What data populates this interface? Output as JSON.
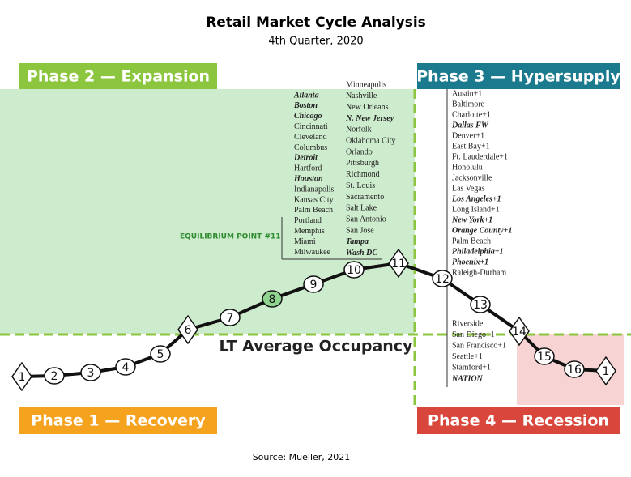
{
  "header": {
    "title": "Retail Market Cycle Analysis",
    "subtitle": "4th Quarter, 2020"
  },
  "phases": [
    {
      "label": "Phase 1 — Recovery",
      "color": "#f5a21f"
    },
    {
      "label": "Phase 2 — Expansion",
      "color": "#8cc63f"
    },
    {
      "label": "Phase 3 — Hypersupply",
      "color": "#1b7a8e"
    },
    {
      "label": "Phase 4 — Recession",
      "color": "#d9463b"
    }
  ],
  "annotations": {
    "equilibrium": "EQUILIBRIUM POINT #11",
    "occupancy": "LT Average Occupancy",
    "source": "Source: Mueller, 2021"
  },
  "city_columns": [
    [
      {
        "label": "Atlanta",
        "emphasis": true
      },
      {
        "label": "Boston",
        "emphasis": true
      },
      {
        "label": "Chicago",
        "emphasis": true
      },
      {
        "label": "Cincinnati"
      },
      {
        "label": "Cleveland"
      },
      {
        "label": "Columbus"
      },
      {
        "label": "Detroit",
        "emphasis": true
      },
      {
        "label": "Hartford"
      },
      {
        "label": "Houston",
        "emphasis": true
      },
      {
        "label": "Indianapolis"
      },
      {
        "label": "Kansas City"
      },
      {
        "label": "Palm Beach"
      },
      {
        "label": "Portland"
      },
      {
        "label": "Memphis"
      },
      {
        "label": "Miami"
      },
      {
        "label": "Milwaukee"
      }
    ],
    [
      {
        "label": "Minneapolis"
      },
      {
        "label": "Nashville"
      },
      {
        "label": "New Orleans"
      },
      {
        "label": "N. New Jersey",
        "emphasis": true
      },
      {
        "label": "Norfolk"
      },
      {
        "label": "Oklahoma City"
      },
      {
        "label": "Orlando"
      },
      {
        "label": "Pittsburgh"
      },
      {
        "label": "Richmond"
      },
      {
        "label": "St. Louis"
      },
      {
        "label": "Sacramento"
      },
      {
        "label": "Salt Lake"
      },
      {
        "label": "San Antonio"
      },
      {
        "label": "San Jose"
      },
      {
        "label": "Tampa",
        "emphasis": true
      },
      {
        "label": "Wash DC",
        "emphasis": true
      }
    ],
    [
      {
        "label": "Austin+1"
      },
      {
        "label": "Baltimore"
      },
      {
        "label": "Charlotte+1"
      },
      {
        "label": "Dallas FW",
        "emphasis": true
      },
      {
        "label": "Denver+1"
      },
      {
        "label": "East Bay+1"
      },
      {
        "label": "Ft. Lauderdale+1"
      },
      {
        "label": "Honolulu"
      },
      {
        "label": "Jacksonville"
      },
      {
        "label": "Las Vegas"
      },
      {
        "label": "Los Angeles+1",
        "emphasis": true
      },
      {
        "label": "Long Island+1"
      },
      {
        "label": "New York+1",
        "emphasis": true
      },
      {
        "label": "Orange County+1",
        "emphasis": true
      },
      {
        "label": "Palm Beach"
      },
      {
        "label": "Philadelphia+1",
        "emphasis": true
      },
      {
        "label": "Phoenix+1",
        "emphasis": true
      },
      {
        "label": "Raleigh-Durham"
      }
    ],
    [
      {
        "label": "Riverside"
      },
      {
        "label": "San Diego+1"
      },
      {
        "label": "San Francisco+1"
      },
      {
        "label": "Seattle+1"
      },
      {
        "label": "Stamford+1"
      },
      {
        "label": "NATION",
        "emphasis": true
      }
    ]
  ],
  "nodes": [
    {
      "label": "1",
      "shape": "diamond"
    },
    {
      "label": "2",
      "shape": "circle"
    },
    {
      "label": "3",
      "shape": "circle"
    },
    {
      "label": "4",
      "shape": "circle"
    },
    {
      "label": "5",
      "shape": "circle"
    },
    {
      "label": "6",
      "shape": "diamond"
    },
    {
      "label": "7",
      "shape": "circle"
    },
    {
      "label": "8",
      "shape": "circle",
      "color": "#8fd48f"
    },
    {
      "label": "9",
      "shape": "circle"
    },
    {
      "label": "10",
      "shape": "circle"
    },
    {
      "label": "11",
      "shape": "diamond"
    },
    {
      "label": "12",
      "shape": "circle"
    },
    {
      "label": "13",
      "shape": "circle"
    },
    {
      "label": "14",
      "shape": "diamond"
    },
    {
      "label": "15",
      "shape": "circle"
    },
    {
      "label": "16",
      "shape": "circle"
    },
    {
      "label": "1",
      "shape": "diamond"
    }
  ]
}
